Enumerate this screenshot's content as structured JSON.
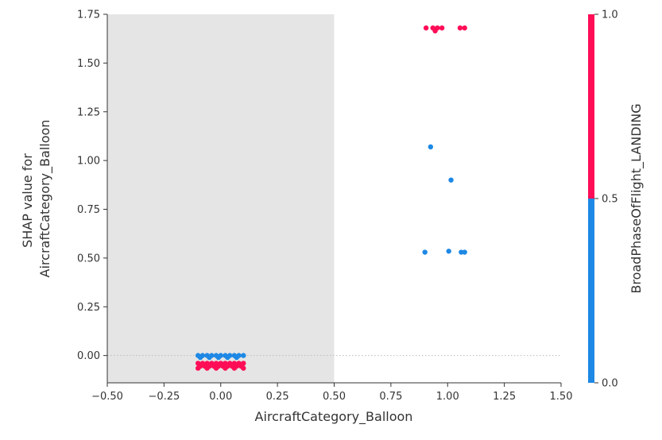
{
  "chart_data": {
    "type": "scatter",
    "xlabel": "AircraftCategory_Balloon",
    "ylabel_lines": [
      "SHAP value for",
      "AircraftCategory_Balloon"
    ],
    "xlim": [
      -0.5,
      1.5
    ],
    "ylim": [
      -0.14,
      1.75
    ],
    "xticks": [
      -0.5,
      -0.25,
      0.0,
      0.25,
      0.5,
      0.75,
      1.0,
      1.25,
      1.5
    ],
    "xtick_labels": [
      "−0.50",
      "−0.25",
      "0.00",
      "0.25",
      "0.50",
      "0.75",
      "1.00",
      "1.25",
      "1.50"
    ],
    "yticks": [
      0.0,
      0.25,
      0.5,
      0.75,
      1.0,
      1.25,
      1.5,
      1.75
    ],
    "ytick_labels": [
      "0.00",
      "0.25",
      "0.50",
      "0.75",
      "1.00",
      "1.25",
      "1.50",
      "1.75"
    ],
    "shaded_region_x": [
      -0.5,
      0.5
    ],
    "zero_line": true,
    "colorbar": {
      "label": "BroadPhaseOfFlight_LANDING",
      "ticks": [
        0.0,
        0.5,
        1.0
      ],
      "tick_labels": [
        "0.0",
        "0.5",
        "1.0"
      ],
      "low_color": "#1E88E5",
      "high_color": "#FF0D57"
    },
    "series": [
      {
        "color_value": 1.0,
        "color": "#FF0D57",
        "points": [
          {
            "x": 0.905,
            "y": 1.68
          },
          {
            "x": 0.935,
            "y": 1.68
          },
          {
            "x": 0.945,
            "y": 1.665
          },
          {
            "x": 0.955,
            "y": 1.68
          },
          {
            "x": 0.975,
            "y": 1.68
          },
          {
            "x": 1.055,
            "y": 1.68
          },
          {
            "x": 1.075,
            "y": 1.68
          },
          {
            "x": -0.1,
            "y": -0.04
          },
          {
            "x": -0.08,
            "y": -0.04
          },
          {
            "x": -0.06,
            "y": -0.04
          },
          {
            "x": -0.04,
            "y": -0.04
          },
          {
            "x": -0.02,
            "y": -0.04
          },
          {
            "x": 0.0,
            "y": -0.04
          },
          {
            "x": 0.02,
            "y": -0.04
          },
          {
            "x": 0.04,
            "y": -0.04
          },
          {
            "x": 0.06,
            "y": -0.04
          },
          {
            "x": 0.08,
            "y": -0.04
          },
          {
            "x": 0.1,
            "y": -0.04
          },
          {
            "x": -0.09,
            "y": -0.055
          },
          {
            "x": -0.07,
            "y": -0.055
          },
          {
            "x": -0.05,
            "y": -0.055
          },
          {
            "x": -0.03,
            "y": -0.055
          },
          {
            "x": -0.01,
            "y": -0.055
          },
          {
            "x": 0.01,
            "y": -0.055
          },
          {
            "x": 0.03,
            "y": -0.055
          },
          {
            "x": 0.05,
            "y": -0.055
          },
          {
            "x": 0.07,
            "y": -0.055
          },
          {
            "x": 0.09,
            "y": -0.055
          },
          {
            "x": -0.1,
            "y": -0.065
          },
          {
            "x": -0.06,
            "y": -0.065
          },
          {
            "x": -0.02,
            "y": -0.065
          },
          {
            "x": 0.02,
            "y": -0.065
          },
          {
            "x": 0.06,
            "y": -0.065
          },
          {
            "x": 0.1,
            "y": -0.065
          }
        ]
      },
      {
        "color_value": 0.0,
        "color": "#1E88E5",
        "points": [
          {
            "x": 0.925,
            "y": 1.07
          },
          {
            "x": 1.015,
            "y": 0.9
          },
          {
            "x": 0.9,
            "y": 0.53
          },
          {
            "x": 1.005,
            "y": 0.535
          },
          {
            "x": 1.06,
            "y": 0.53
          },
          {
            "x": 1.075,
            "y": 0.53
          },
          {
            "x": -0.1,
            "y": 0.0
          },
          {
            "x": -0.08,
            "y": 0.0
          },
          {
            "x": -0.06,
            "y": 0.0
          },
          {
            "x": -0.04,
            "y": 0.0
          },
          {
            "x": -0.02,
            "y": 0.0
          },
          {
            "x": 0.0,
            "y": 0.0
          },
          {
            "x": 0.02,
            "y": 0.0
          },
          {
            "x": 0.04,
            "y": 0.0
          },
          {
            "x": 0.06,
            "y": 0.0
          },
          {
            "x": 0.08,
            "y": 0.0
          },
          {
            "x": 0.1,
            "y": 0.0
          },
          {
            "x": -0.09,
            "y": -0.01
          },
          {
            "x": -0.05,
            "y": -0.01
          },
          {
            "x": -0.01,
            "y": -0.01
          },
          {
            "x": 0.03,
            "y": -0.01
          },
          {
            "x": 0.07,
            "y": -0.01
          }
        ]
      }
    ]
  }
}
